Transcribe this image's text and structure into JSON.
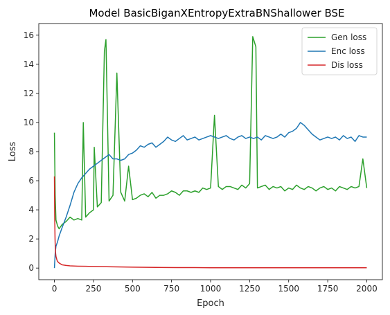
{
  "chart_data": {
    "type": "line",
    "title": "Model BasicBiganXEntropyExtraBNShallower BSE",
    "xlabel": "Epoch",
    "ylabel": "Loss",
    "xlim": [
      -100,
      2100
    ],
    "ylim": [
      -0.8,
      16.8
    ],
    "x_ticks": [
      0,
      250,
      500,
      750,
      1000,
      1250,
      1500,
      1750,
      2000
    ],
    "y_ticks": [
      0,
      2,
      4,
      6,
      8,
      10,
      12,
      14,
      16
    ],
    "legend_position": "top-right",
    "grid": false,
    "series": [
      {
        "name": "Gen loss",
        "color": "#2ca02c",
        "x": [
          0,
          5,
          10,
          20,
          30,
          50,
          75,
          100,
          125,
          150,
          175,
          185,
          200,
          225,
          250,
          255,
          275,
          300,
          320,
          330,
          350,
          375,
          400,
          425,
          450,
          475,
          500,
          525,
          550,
          575,
          600,
          625,
          650,
          675,
          700,
          725,
          750,
          775,
          800,
          825,
          850,
          875,
          900,
          925,
          950,
          975,
          1000,
          1025,
          1050,
          1075,
          1100,
          1125,
          1150,
          1175,
          1200,
          1225,
          1250,
          1270,
          1290,
          1300,
          1325,
          1350,
          1375,
          1400,
          1425,
          1450,
          1475,
          1500,
          1525,
          1550,
          1575,
          1600,
          1625,
          1650,
          1675,
          1700,
          1725,
          1750,
          1775,
          1800,
          1825,
          1850,
          1875,
          1900,
          1925,
          1950,
          1975,
          2000
        ],
        "y": [
          9.3,
          5.0,
          3.3,
          2.9,
          2.7,
          3.0,
          3.2,
          3.5,
          3.3,
          3.4,
          3.3,
          10.0,
          3.5,
          3.8,
          4.0,
          8.3,
          4.2,
          4.5,
          14.9,
          15.7,
          4.6,
          5.0,
          13.4,
          5.2,
          4.6,
          7.0,
          4.7,
          4.8,
          5.0,
          5.1,
          4.9,
          5.2,
          4.8,
          5.0,
          5.0,
          5.1,
          5.3,
          5.2,
          5.0,
          5.3,
          5.3,
          5.2,
          5.3,
          5.2,
          5.5,
          5.4,
          5.5,
          10.5,
          5.6,
          5.4,
          5.6,
          5.6,
          5.5,
          5.4,
          5.7,
          5.5,
          5.8,
          15.9,
          15.2,
          5.5,
          5.6,
          5.7,
          5.4,
          5.6,
          5.5,
          5.6,
          5.3,
          5.5,
          5.4,
          5.7,
          5.5,
          5.4,
          5.6,
          5.5,
          5.3,
          5.5,
          5.6,
          5.4,
          5.5,
          5.3,
          5.6,
          5.5,
          5.4,
          5.6,
          5.5,
          5.6,
          7.5,
          5.5
        ]
      },
      {
        "name": "Enc loss",
        "color": "#1f77b4",
        "x": [
          0,
          5,
          10,
          20,
          30,
          50,
          75,
          100,
          125,
          150,
          175,
          200,
          225,
          250,
          275,
          300,
          325,
          350,
          375,
          400,
          425,
          450,
          475,
          500,
          525,
          550,
          575,
          600,
          625,
          650,
          675,
          700,
          725,
          750,
          775,
          800,
          825,
          850,
          875,
          900,
          925,
          950,
          975,
          1000,
          1025,
          1050,
          1075,
          1100,
          1125,
          1150,
          1175,
          1200,
          1225,
          1250,
          1275,
          1300,
          1325,
          1350,
          1375,
          1400,
          1425,
          1450,
          1475,
          1500,
          1525,
          1550,
          1575,
          1600,
          1625,
          1650,
          1675,
          1700,
          1725,
          1750,
          1775,
          1800,
          1825,
          1850,
          1875,
          1900,
          1925,
          1950,
          1975,
          2000
        ],
        "y": [
          0.0,
          1.0,
          1.5,
          1.8,
          2.2,
          2.8,
          3.5,
          4.3,
          5.2,
          5.8,
          6.2,
          6.5,
          6.8,
          7.0,
          7.2,
          7.4,
          7.6,
          7.8,
          7.5,
          7.5,
          7.4,
          7.5,
          7.8,
          7.9,
          8.1,
          8.4,
          8.3,
          8.5,
          8.6,
          8.3,
          8.5,
          8.7,
          9.0,
          8.8,
          8.7,
          8.9,
          9.1,
          8.8,
          8.9,
          9.0,
          8.8,
          8.9,
          9.0,
          9.1,
          9.0,
          8.9,
          9.0,
          9.1,
          8.9,
          8.8,
          9.0,
          9.1,
          8.9,
          9.0,
          8.9,
          9.0,
          8.8,
          9.1,
          9.0,
          8.9,
          9.0,
          9.2,
          9.0,
          9.3,
          9.4,
          9.6,
          10.0,
          9.8,
          9.5,
          9.2,
          9.0,
          8.8,
          8.9,
          9.0,
          8.9,
          9.0,
          8.8,
          9.1,
          8.9,
          9.0,
          8.7,
          9.1,
          9.0,
          9.0
        ]
      },
      {
        "name": "Dis loss",
        "color": "#d62728",
        "x": [
          0,
          2,
          4,
          6,
          8,
          10,
          15,
          20,
          30,
          40,
          50,
          75,
          100,
          150,
          200,
          250,
          300,
          400,
          500,
          600,
          700,
          800,
          900,
          1000,
          1250,
          1500,
          1750,
          2000
        ],
        "y": [
          6.3,
          3.5,
          2.0,
          1.3,
          1.0,
          0.8,
          0.6,
          0.45,
          0.35,
          0.28,
          0.22,
          0.18,
          0.15,
          0.13,
          0.12,
          0.11,
          0.1,
          0.08,
          0.06,
          0.05,
          0.04,
          0.03,
          0.03,
          0.02,
          0.02,
          0.02,
          0.02,
          0.02
        ]
      }
    ]
  }
}
